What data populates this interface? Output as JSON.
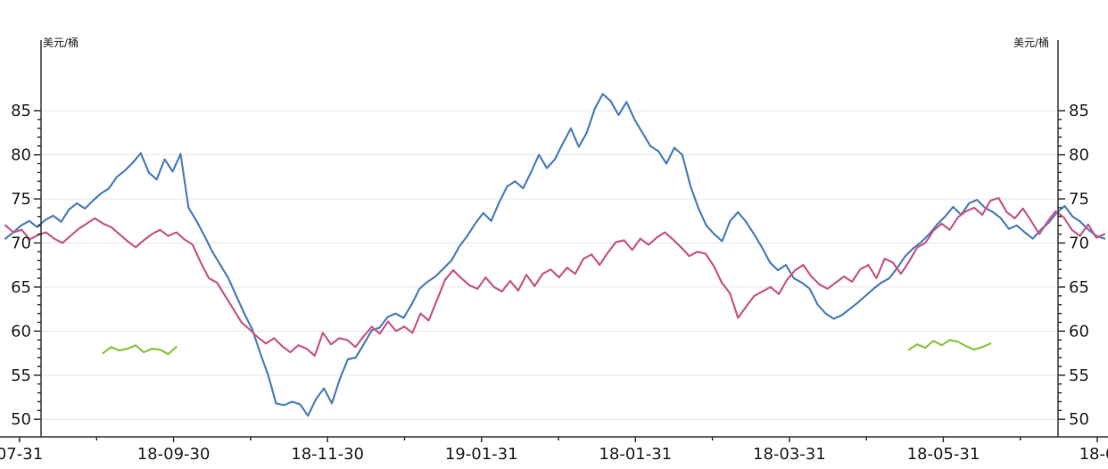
{
  "chart_data": {
    "type": "line",
    "ylabel_left": "美元/桶",
    "ylabel_right": "美元/桶",
    "ylim": [
      48,
      92
    ],
    "yticks": [
      {
        "value": 85,
        "label": "85"
      },
      {
        "value": 80,
        "label": "80"
      },
      {
        "value": 75,
        "label": "75"
      },
      {
        "value": 70,
        "label": "70"
      },
      {
        "value": 65,
        "label": "65"
      },
      {
        "value": 60,
        "label": "60"
      },
      {
        "value": 55,
        "label": "55"
      },
      {
        "value": 50,
        "label": "50"
      }
    ],
    "xticks": [
      {
        "label": "07-31"
      },
      {
        "label": "18-09-30"
      },
      {
        "label": "18-11-30"
      },
      {
        "label": "19-01-31"
      },
      {
        "label": "18-01-31"
      },
      {
        "label": "18-03-31"
      },
      {
        "label": "18-05-31"
      },
      {
        "label": "18-0"
      }
    ],
    "grid": true,
    "series": [
      {
        "color": "#4f81bd",
        "values": [
          70.5,
          71.2,
          72.0,
          72.5,
          71.8,
          72.6,
          73.1,
          72.4,
          73.8,
          74.5,
          73.9,
          74.8,
          75.6,
          76.2,
          77.5,
          78.2,
          79.1,
          80.2,
          78.0,
          77.2,
          79.5,
          78.1,
          80.1,
          74.0,
          72.5,
          70.8,
          69.0,
          67.5,
          66.0,
          64.0,
          62.0,
          60.2,
          57.5,
          55.0,
          51.8,
          51.6,
          52.0,
          51.7,
          50.4,
          52.3,
          53.5,
          51.8,
          54.6,
          56.8,
          57.0,
          58.5,
          60.1,
          60.4,
          61.6,
          62.0,
          61.5,
          63.0,
          64.8,
          65.6,
          66.2,
          67.1,
          68.0,
          69.6,
          70.8,
          72.2,
          73.4,
          72.5,
          74.6,
          76.4,
          77.0,
          76.2,
          78.0,
          80.0,
          78.5,
          79.5,
          81.3,
          83.0,
          80.9,
          82.5,
          85.2,
          86.9,
          86.1,
          84.5,
          86.0,
          84.0,
          82.5,
          81.0,
          80.4,
          79.0,
          80.8,
          80.0,
          76.5,
          74.0,
          72.0,
          71.0,
          70.2,
          72.5,
          73.5,
          72.4,
          71.0,
          69.5,
          67.8,
          66.9,
          67.5,
          66.0,
          65.5,
          64.8,
          63.0,
          62.0,
          61.4,
          61.8,
          62.5,
          63.2,
          64.0,
          64.8,
          65.5,
          66.0,
          67.2,
          68.5,
          69.4,
          70.1,
          71.0,
          72.1,
          73.0,
          74.1,
          73.2,
          74.5,
          74.9,
          74.0,
          73.5,
          72.8,
          71.6,
          72.0,
          71.2,
          70.5,
          71.5,
          72.3,
          73.4,
          74.2,
          73.0,
          72.4,
          71.5,
          70.8,
          70.5
        ]
      },
      {
        "color": "#c85a8a",
        "values": [
          72.0,
          71.2,
          71.5,
          70.4,
          70.9,
          71.2,
          70.5,
          70.0,
          70.8,
          71.6,
          72.2,
          72.8,
          72.2,
          71.8,
          71.0,
          70.2,
          69.5,
          70.3,
          71.0,
          71.5,
          70.8,
          71.2,
          70.4,
          69.8,
          67.8,
          66.0,
          65.5,
          64.0,
          62.5,
          61.0,
          60.2,
          59.3,
          58.6,
          59.2,
          58.3,
          57.6,
          58.4,
          58.0,
          57.2,
          59.8,
          58.5,
          59.2,
          59.0,
          58.2,
          59.4,
          60.5,
          59.7,
          61.1,
          60.0,
          60.5,
          59.8,
          62.0,
          61.2,
          63.5,
          65.8,
          66.9,
          66.0,
          65.2,
          64.8,
          66.1,
          65.0,
          64.5,
          65.7,
          64.6,
          66.4,
          65.1,
          66.5,
          67.0,
          66.1,
          67.2,
          66.5,
          68.2,
          68.7,
          67.5,
          68.9,
          70.1,
          70.3,
          69.2,
          70.5,
          69.8,
          70.6,
          71.2,
          70.4,
          69.5,
          68.5,
          69.0,
          68.8,
          67.4,
          65.5,
          64.3,
          61.5,
          62.8,
          64.0,
          64.5,
          65.0,
          64.2,
          65.8,
          66.9,
          67.5,
          66.2,
          65.3,
          64.8,
          65.5,
          66.2,
          65.6,
          67.0,
          67.5,
          66.0,
          68.2,
          67.8,
          66.5,
          67.9,
          69.5,
          70.0,
          71.4,
          72.2,
          71.5,
          72.9,
          73.6,
          74.0,
          73.2,
          74.8,
          75.1,
          73.5,
          72.8,
          73.9,
          72.5,
          71.0,
          72.4,
          73.6,
          72.9,
          71.5,
          70.8,
          72.1,
          70.6,
          71.0
        ]
      },
      {
        "color": "#8dc63f",
        "values": [
          null,
          null,
          null,
          null,
          null,
          null,
          null,
          null,
          null,
          null,
          null,
          null,
          57.5,
          58.2,
          57.8,
          58.0,
          58.4,
          57.6,
          58.0,
          57.9,
          57.4,
          58.2,
          null,
          null,
          null,
          null,
          null,
          null,
          null,
          null,
          null,
          null,
          null,
          null,
          null,
          null,
          null,
          null,
          null,
          null,
          null,
          null,
          null,
          null,
          null,
          null,
          null,
          null,
          null,
          null,
          null,
          null,
          null,
          null,
          null,
          null,
          null,
          null,
          null,
          null,
          null,
          null,
          null,
          null,
          null,
          null,
          null,
          null,
          null,
          null,
          null,
          null,
          null,
          null,
          null,
          null,
          null,
          null,
          null,
          null,
          null,
          null,
          null,
          null,
          null,
          null,
          null,
          null,
          null,
          null,
          null,
          null,
          null,
          null,
          null,
          null,
          null,
          null,
          null,
          null,
          null,
          null,
          null,
          null,
          null,
          null,
          null,
          null,
          null,
          null,
          null,
          57.9,
          58.5,
          58.1,
          58.9,
          58.4,
          59.0,
          58.8,
          58.3,
          57.9,
          58.2,
          58.6,
          null,
          null,
          null,
          null,
          null,
          null,
          null,
          null,
          null,
          null,
          null,
          null,
          null,
          null
        ]
      }
    ]
  }
}
